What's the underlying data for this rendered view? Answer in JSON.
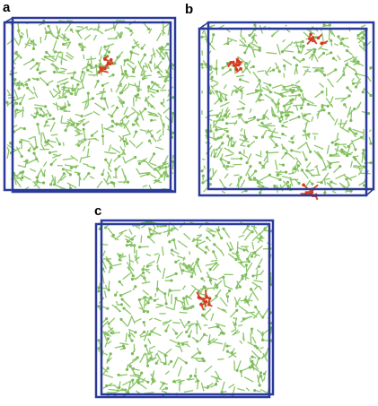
{
  "panels": [
    {
      "label": "a"
    },
    {
      "label": "b"
    },
    {
      "label": "c"
    }
  ]
}
